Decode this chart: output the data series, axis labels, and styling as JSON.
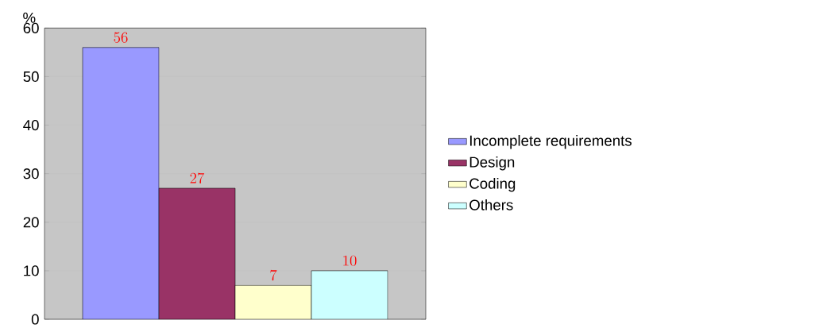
{
  "chart_data": {
    "type": "bar",
    "ylabel": "%",
    "categories": [
      null
    ],
    "series": [
      {
        "name": "Incomplete requirements",
        "color": "#9999ff",
        "values": [
          56
        ]
      },
      {
        "name": "Design",
        "color": "#993366",
        "values": [
          27
        ]
      },
      {
        "name": "Coding",
        "color": "#ffffcc",
        "values": [
          7
        ]
      },
      {
        "name": "Others",
        "color": "#ccffff",
        "values": [
          10
        ]
      }
    ],
    "ylim": [
      0,
      60
    ],
    "yticks": [
      0,
      10,
      20,
      30,
      40,
      50,
      60
    ],
    "grid": "y",
    "legend": "right",
    "data_labels": true
  }
}
